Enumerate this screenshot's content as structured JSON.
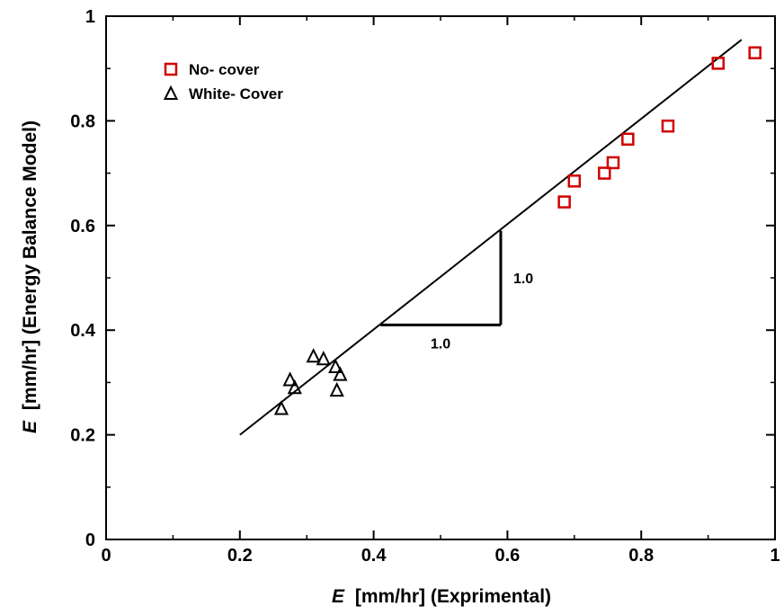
{
  "chart_data": {
    "type": "scatter",
    "xlabel_var": "E",
    "xlabel": "[mm/hr] (Exprimental)",
    "ylabel_var": "E",
    "ylabel": "[mm/hr] (Energy Balance Model)",
    "xlim": [
      0,
      1
    ],
    "ylim": [
      0,
      1
    ],
    "xticks": [
      "0",
      "0.2",
      "0.4",
      "0.6",
      "0.8",
      "1"
    ],
    "yticks": [
      "0",
      "0.2",
      "0.4",
      "0.6",
      "0.8",
      "1"
    ],
    "xtick_values": [
      0,
      0.2,
      0.4,
      0.6,
      0.8,
      1
    ],
    "ytick_values": [
      0,
      0.2,
      0.4,
      0.6,
      0.8,
      1
    ],
    "grid": false,
    "legend_position": "top-left",
    "series": [
      {
        "name": "No- cover",
        "marker": "square",
        "color": "#d00000",
        "points": [
          [
            0.685,
            0.645
          ],
          [
            0.7,
            0.685
          ],
          [
            0.745,
            0.7
          ],
          [
            0.758,
            0.72
          ],
          [
            0.78,
            0.765
          ],
          [
            0.84,
            0.79
          ],
          [
            0.915,
            0.91
          ],
          [
            0.97,
            0.93
          ]
        ]
      },
      {
        "name": "White- Cover",
        "marker": "triangle",
        "color": "#000000",
        "points": [
          [
            0.262,
            0.25
          ],
          [
            0.275,
            0.305
          ],
          [
            0.282,
            0.29
          ],
          [
            0.31,
            0.35
          ],
          [
            0.325,
            0.345
          ],
          [
            0.343,
            0.33
          ],
          [
            0.345,
            0.285
          ],
          [
            0.35,
            0.315
          ]
        ]
      }
    ],
    "reference_line": {
      "x": [
        0.2,
        0.95
      ],
      "y": [
        0.2,
        0.955
      ]
    },
    "slope_annotation": {
      "x0": 0.41,
      "y0": 0.41,
      "x1": 0.59,
      "y1": 0.59,
      "run_label": "1.0",
      "rise_label": "1.0"
    }
  }
}
